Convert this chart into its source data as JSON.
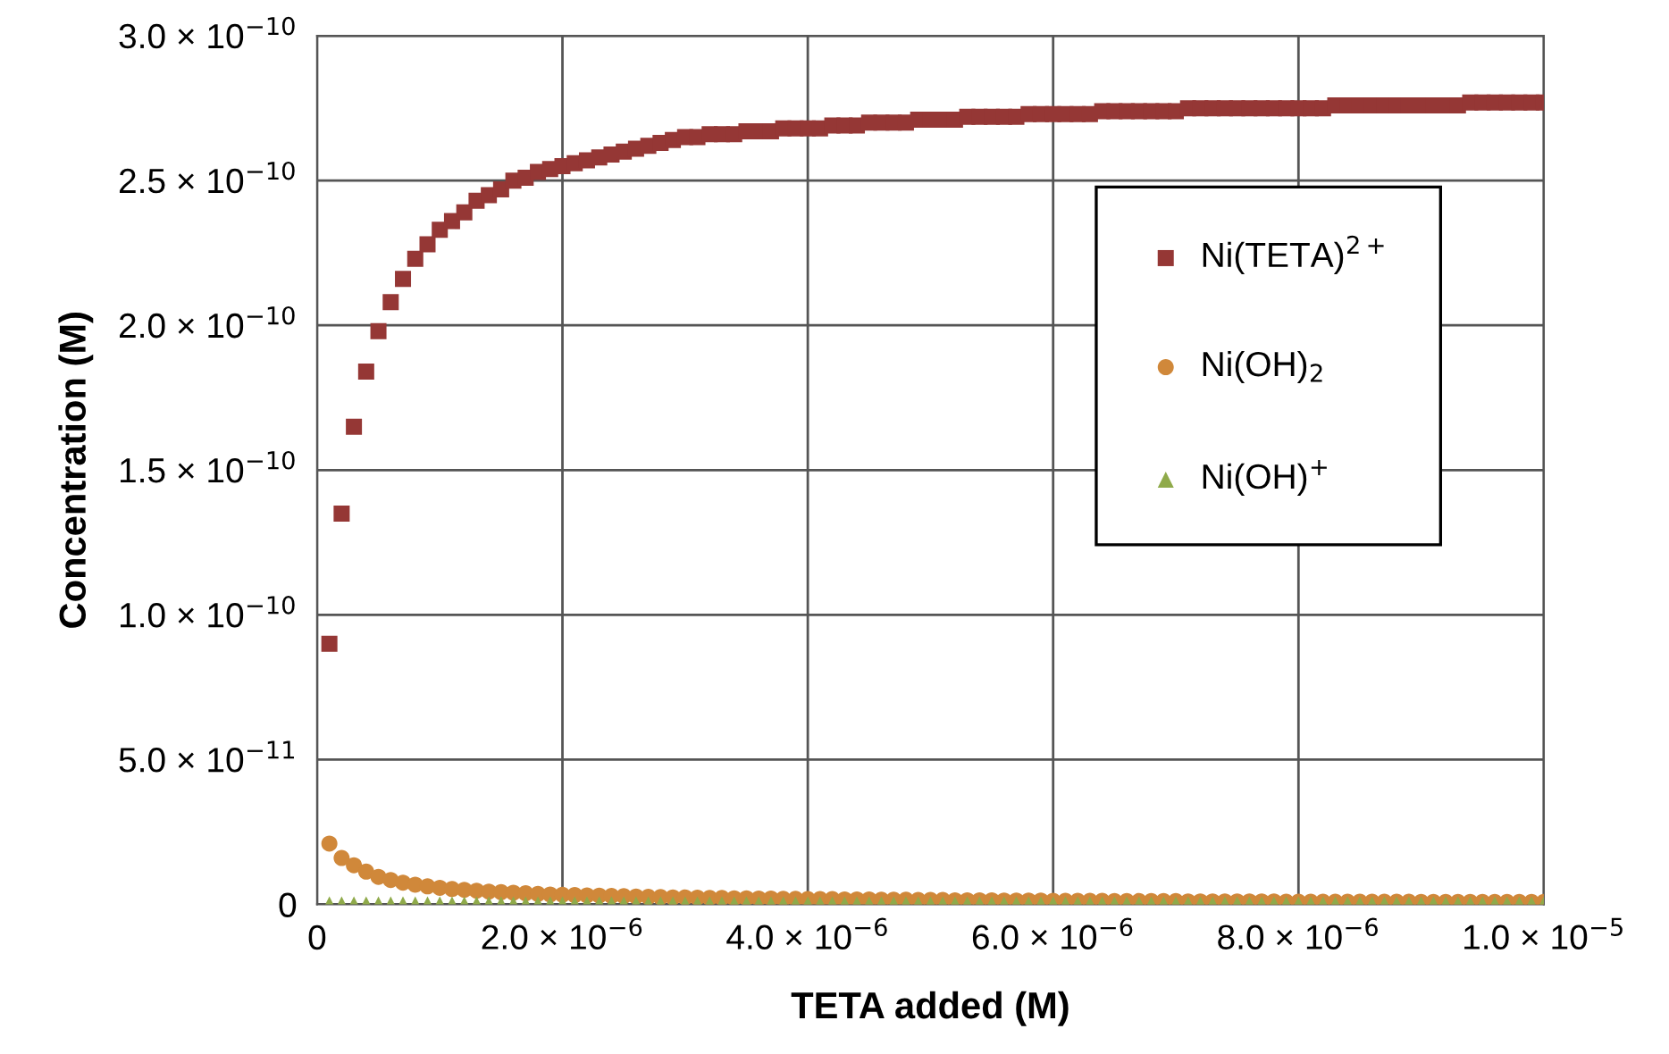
{
  "chart_data": {
    "type": "scatter",
    "xlabel": "TETA added (M)",
    "ylabel": "Concentration (M)",
    "x": [
      1e-07,
      2e-07,
      3e-07,
      4e-07,
      5e-07,
      6e-07,
      7e-07,
      8e-07,
      9e-07,
      1e-06,
      1.1e-06,
      1.2e-06,
      1.3e-06,
      1.4e-06,
      1.5e-06,
      1.6e-06,
      1.7e-06,
      1.8e-06,
      1.9e-06,
      2e-06,
      2.1e-06,
      2.2e-06,
      2.3e-06,
      2.4e-06,
      2.5e-06,
      2.6e-06,
      2.7e-06,
      2.8e-06,
      2.9e-06,
      3e-06,
      3.1e-06,
      3.2e-06,
      3.3e-06,
      3.4e-06,
      3.5e-06,
      3.6e-06,
      3.7e-06,
      3.8e-06,
      3.9e-06,
      4e-06,
      4.1e-06,
      4.2e-06,
      4.3e-06,
      4.4e-06,
      4.5e-06,
      4.6e-06,
      4.7e-06,
      4.8e-06,
      4.9e-06,
      5e-06,
      5.1e-06,
      5.2e-06,
      5.3e-06,
      5.4e-06,
      5.5e-06,
      5.6e-06,
      5.7e-06,
      5.8e-06,
      5.9e-06,
      6e-06,
      6.1e-06,
      6.2e-06,
      6.3e-06,
      6.4e-06,
      6.5e-06,
      6.6e-06,
      6.7e-06,
      6.8e-06,
      6.9e-06,
      7e-06,
      7.1e-06,
      7.2e-06,
      7.3e-06,
      7.4e-06,
      7.5e-06,
      7.6e-06,
      7.7e-06,
      7.8e-06,
      7.9e-06,
      8e-06,
      8.1e-06,
      8.2e-06,
      8.3e-06,
      8.4e-06,
      8.5e-06,
      8.6e-06,
      8.7e-06,
      8.8e-06,
      8.9e-06,
      9e-06,
      9.1e-06,
      9.2e-06,
      9.3e-06,
      9.4e-06,
      9.5e-06,
      9.6e-06,
      9.7e-06,
      9.8e-06,
      9.9e-06,
      1e-05
    ],
    "series": [
      {
        "name": "Ni(TETA)$^{2+}$",
        "color": "#953735",
        "marker": "square",
        "values": [
          9e-11,
          1.35e-10,
          1.65e-10,
          1.84e-10,
          1.98e-10,
          2.08e-10,
          2.16e-10,
          2.23e-10,
          2.28e-10,
          2.33e-10,
          2.36e-10,
          2.39e-10,
          2.43e-10,
          2.45e-10,
          2.47e-10,
          2.5e-10,
          2.51e-10,
          2.53e-10,
          2.54e-10,
          2.55e-10,
          2.56e-10,
          2.57e-10,
          2.58e-10,
          2.59e-10,
          2.6e-10,
          2.61e-10,
          2.62e-10,
          2.63e-10,
          2.64e-10,
          2.65e-10,
          2.65e-10,
          2.66e-10,
          2.66e-10,
          2.66e-10,
          2.67e-10,
          2.67e-10,
          2.67e-10,
          2.68e-10,
          2.68e-10,
          2.68e-10,
          2.68e-10,
          2.69e-10,
          2.69e-10,
          2.69e-10,
          2.7e-10,
          2.7e-10,
          2.7e-10,
          2.7e-10,
          2.71e-10,
          2.71e-10,
          2.71e-10,
          2.71e-10,
          2.72e-10,
          2.72e-10,
          2.72e-10,
          2.72e-10,
          2.72e-10,
          2.73e-10,
          2.73e-10,
          2.73e-10,
          2.73e-10,
          2.73e-10,
          2.73e-10,
          2.74e-10,
          2.74e-10,
          2.74e-10,
          2.74e-10,
          2.74e-10,
          2.74e-10,
          2.74e-10,
          2.75e-10,
          2.75e-10,
          2.75e-10,
          2.75e-10,
          2.75e-10,
          2.75e-10,
          2.75e-10,
          2.75e-10,
          2.75e-10,
          2.75e-10,
          2.75e-10,
          2.75e-10,
          2.76e-10,
          2.76e-10,
          2.76e-10,
          2.76e-10,
          2.76e-10,
          2.76e-10,
          2.76e-10,
          2.76e-10,
          2.76e-10,
          2.76e-10,
          2.76e-10,
          2.77e-10,
          2.77e-10,
          2.77e-10,
          2.77e-10,
          2.77e-10,
          2.77e-10,
          2.77e-10
        ]
      },
      {
        "name": "Ni(OH)$_{2}$",
        "color": "#d0883a",
        "marker": "circle",
        "values": [
          2.1e-11,
          1.6e-11,
          1.35e-11,
          1.13e-11,
          9.5e-12,
          8.4e-12,
          7.5e-12,
          6.8e-12,
          6.2e-12,
          5.7e-12,
          5.3e-12,
          5e-12,
          4.7e-12,
          4.4e-12,
          4.2e-12,
          4e-12,
          3.8e-12,
          3.6e-12,
          3.4e-12,
          3.3e-12,
          3.2e-12,
          3.1e-12,
          3e-12,
          2.9e-12,
          2.8e-12,
          2.7e-12,
          2.6e-12,
          2.5e-12,
          2.4e-12,
          2.4e-12,
          2.3e-12,
          2.2e-12,
          2.2e-12,
          2.1e-12,
          2.1e-12,
          2e-12,
          2e-12,
          1.9e-12,
          1.9e-12,
          1.8e-12,
          1.8e-12,
          1.8e-12,
          1.7e-12,
          1.7e-12,
          1.7e-12,
          1.6e-12,
          1.6e-12,
          1.6e-12,
          1.5e-12,
          1.5e-12,
          1.5e-12,
          1.4e-12,
          1.4e-12,
          1.4e-12,
          1.4e-12,
          1.3e-12,
          1.3e-12,
          1.3e-12,
          1.3e-12,
          1.2e-12,
          1.2e-12,
          1.2e-12,
          1.2e-12,
          1.2e-12,
          1.1e-12,
          1.1e-12,
          1.1e-12,
          1.1e-12,
          1.1e-12,
          1.1e-12,
          1e-12,
          1e-12,
          1e-12,
          1e-12,
          1e-12,
          1e-12,
          1e-12,
          1e-12,
          9e-13,
          9e-13,
          9e-13,
          9e-13,
          9e-13,
          9e-13,
          9e-13,
          9e-13,
          9e-13,
          9e-13,
          9e-13,
          8e-13,
          8e-13,
          8e-13,
          8e-13,
          8e-13,
          8e-13,
          8e-13,
          8e-13,
          8e-13,
          8e-13,
          8e-13
        ]
      },
      {
        "name": "Ni(OH)$^{+}$",
        "color": "#8faa4a",
        "marker": "triangle",
        "values": [
          0,
          0,
          0,
          0,
          0,
          0,
          0,
          0,
          0,
          0,
          0,
          0,
          0,
          0,
          0,
          0,
          0,
          0,
          0,
          0,
          0,
          0,
          0,
          0,
          0,
          0,
          0,
          0,
          0,
          0,
          0,
          0,
          0,
          0,
          0,
          0,
          0,
          0,
          0,
          0,
          0,
          0,
          0,
          0,
          0,
          0,
          0,
          0,
          0,
          0,
          0,
          0,
          0,
          0,
          0,
          0,
          0,
          0,
          0,
          0,
          0,
          0,
          0,
          0,
          0,
          0,
          0,
          0,
          0,
          0,
          0,
          0,
          0,
          0,
          0,
          0,
          0,
          0,
          0,
          0,
          0,
          0,
          0,
          0,
          0,
          0,
          0,
          0,
          0,
          0,
          0,
          0,
          0,
          0,
          0,
          0,
          0,
          0,
          0,
          0
        ]
      }
    ],
    "xlim": [
      0,
      1e-05
    ],
    "xticks": [
      0,
      {
        "value": 2e-06,
        "label": "2.0 × 10$^{−6}$"
      },
      {
        "value": 4e-06,
        "label": "4.0 × 10$^{−6}$"
      },
      {
        "value": 6e-06,
        "label": "6.0 × 10$^{−6}$"
      },
      {
        "value": 8e-06,
        "label": "8.0 × 10$^{−6}$"
      },
      {
        "value": 1e-05,
        "label": "1.0 × 10$^{−5}$"
      }
    ],
    "ylim": [
      0,
      3e-10
    ],
    "yticks": [
      0,
      {
        "value": 5e-11,
        "label": "5.0 × 10$^{−11}$"
      },
      {
        "value": 1e-10,
        "label": "1.0 × 10$^{−10}$"
      },
      {
        "value": 1.5e-10,
        "label": "1.5 × 10$^{−10}$"
      },
      {
        "value": 2e-10,
        "label": "2.0 × 10$^{−10}$"
      },
      {
        "value": 2.5e-10,
        "label": "2.5 × 10$^{−10}$"
      },
      {
        "value": 3e-10,
        "label": "3.0 × 10$^{−10}$"
      }
    ],
    "grid": true,
    "legend": "right"
  }
}
